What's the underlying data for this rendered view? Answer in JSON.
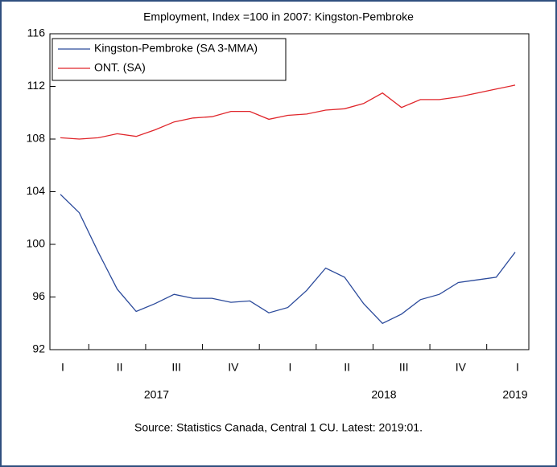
{
  "chart_data": {
    "type": "line",
    "title": "Employment, Index =100 in 2007: Kingston-Pembroke",
    "source": "Source: Statistics Canada, Central 1 CU. Latest: 2019:01.",
    "categories": [
      "I",
      null,
      null,
      "II",
      null,
      null,
      "III",
      null,
      null,
      "IV",
      null,
      null,
      "I",
      null,
      null,
      "II",
      null,
      null,
      "III",
      null,
      null,
      "IV",
      null,
      null,
      "I"
    ],
    "years": [
      "2017",
      "2018",
      "2019"
    ],
    "series": [
      {
        "name": "Kingston-Pembroke (SA 3-MMA)",
        "color": "#2b4a9b",
        "values": [
          103.8,
          102.4,
          99.4,
          96.6,
          94.9,
          95.5,
          96.2,
          95.9,
          95.9,
          95.6,
          95.7,
          94.8,
          95.2,
          96.5,
          98.2,
          97.5,
          95.5,
          94.0,
          94.7,
          95.8,
          96.2,
          97.1,
          97.3,
          97.5,
          99.4
        ]
      },
      {
        "name": "ONT. (SA)",
        "color": "#e0262b",
        "values": [
          108.1,
          108.0,
          108.1,
          108.4,
          108.2,
          108.7,
          109.3,
          109.6,
          109.7,
          110.1,
          110.1,
          109.5,
          109.8,
          109.9,
          110.2,
          110.3,
          110.7,
          111.5,
          110.4,
          111.0,
          111.0,
          111.2,
          111.5,
          111.8,
          112.1
        ]
      }
    ],
    "ylim": [
      92,
      116
    ],
    "yticks": [
      92,
      96,
      100,
      104,
      108,
      112,
      116
    ],
    "grid": false,
    "legend": "top-left"
  }
}
